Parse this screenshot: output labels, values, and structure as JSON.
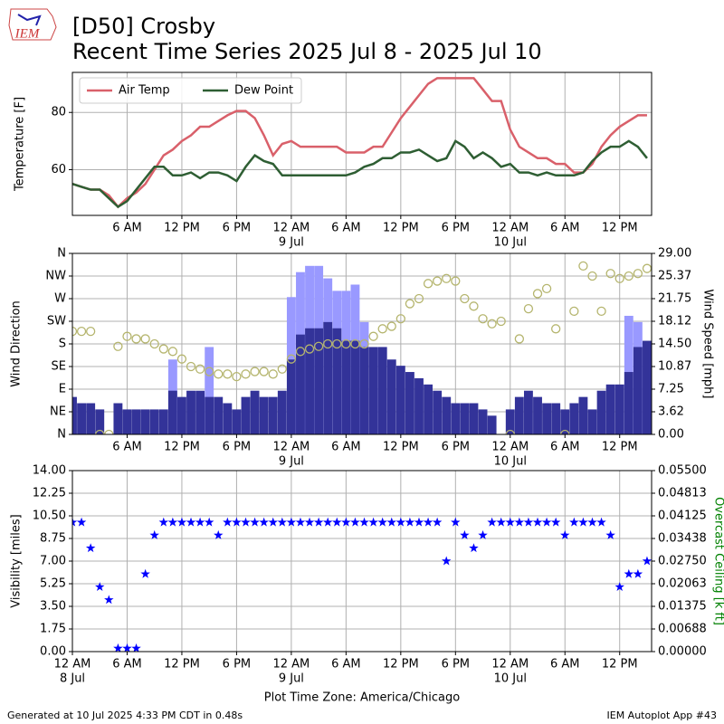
{
  "header": {
    "logo_text": "IEM",
    "title": "[D50] Crosby",
    "subtitle": "Recent Time Series 2025 Jul 8 - 2025 Jul 10"
  },
  "footer": {
    "left": "Generated at 10 Jul 2025 4:33 PM CDT in 0.48s",
    "right": "IEM Autoplot App #43"
  },
  "chart_data": [
    {
      "type": "line",
      "ylabel": "Temperature [F]",
      "grid": true,
      "legend": "upper left",
      "xlim": [
        0,
        63.5
      ],
      "ylim": [
        44,
        94
      ],
      "yticks": [
        60,
        80
      ],
      "xticks": [
        {
          "value": 6,
          "label": "6 AM"
        },
        {
          "value": 12,
          "label": "12 PM"
        },
        {
          "value": 18,
          "label": "6 PM"
        },
        {
          "value": 24,
          "label": "12 AM"
        },
        {
          "value": 30,
          "label": "6 AM"
        },
        {
          "value": 36,
          "label": "12 PM"
        },
        {
          "value": 42,
          "label": "6 PM"
        },
        {
          "value": 48,
          "label": "12 AM"
        },
        {
          "value": 54,
          "label": "6 AM"
        },
        {
          "value": 60,
          "label": "12 PM"
        }
      ],
      "xdate_labels": [
        {
          "value": 24,
          "label": "9 Jul"
        },
        {
          "value": 48,
          "label": "10 Jul"
        }
      ],
      "x": [
        0,
        1,
        2,
        3,
        4,
        5,
        6,
        7,
        8,
        9,
        10,
        11,
        12,
        13,
        14,
        15,
        16,
        17,
        18,
        19,
        20,
        21,
        22,
        23,
        24,
        25,
        26,
        27,
        28,
        29,
        30,
        31,
        32,
        33,
        34,
        35,
        36,
        37,
        38,
        39,
        40,
        41,
        42,
        43,
        44,
        45,
        46,
        47,
        48,
        49,
        50,
        51,
        52,
        53,
        54,
        55,
        56,
        57,
        58,
        59,
        60,
        61,
        62,
        63
      ],
      "series": [
        {
          "name": "Air Temp",
          "color": "#d9606a",
          "values": [
            55,
            54,
            53,
            53,
            51,
            47,
            50,
            52,
            55,
            60,
            65,
            67,
            70,
            72,
            75,
            75,
            77,
            79,
            80.5,
            80.5,
            78,
            72,
            65,
            69,
            70,
            68,
            68,
            68,
            68,
            68,
            66,
            66,
            66,
            68,
            68,
            73,
            78,
            82,
            86,
            90,
            92,
            92,
            92,
            92,
            92,
            88,
            84,
            84,
            74,
            68,
            66,
            64,
            64,
            62,
            62,
            59,
            59,
            62,
            68,
            72,
            75,
            77,
            79,
            79
          ]
        },
        {
          "name": "Dew Point",
          "color": "#2e5e33",
          "values": [
            55,
            54,
            53,
            53,
            50,
            47,
            49,
            53,
            57,
            61,
            61,
            58,
            58,
            59,
            57,
            59,
            59,
            58,
            56,
            61,
            65,
            63,
            62,
            58,
            58,
            58,
            58,
            58,
            58,
            58,
            58,
            59,
            61,
            62,
            64,
            64,
            66,
            66,
            67,
            65,
            63,
            64,
            70,
            68,
            64,
            66,
            64,
            61,
            62,
            59,
            59,
            58,
            59,
            58,
            58,
            58,
            59,
            63,
            66,
            68,
            68,
            70,
            68,
            64
          ]
        }
      ]
    },
    {
      "type": "bar",
      "ylabel": "Wind Direction",
      "y2label": "Wind Speed [mph]",
      "grid": true,
      "xlim": [
        0,
        63.5
      ],
      "ylim": [
        0,
        360
      ],
      "yticks": [
        {
          "value": 0,
          "label": "N"
        },
        {
          "value": 45,
          "label": "NE"
        },
        {
          "value": 90,
          "label": "E"
        },
        {
          "value": 135,
          "label": "SE"
        },
        {
          "value": 180,
          "label": "S"
        },
        {
          "value": 225,
          "label": "SW"
        },
        {
          "value": 270,
          "label": "W"
        },
        {
          "value": 315,
          "label": "NW"
        },
        {
          "value": 360,
          "label": "N"
        }
      ],
      "y2lim": [
        0,
        29
      ],
      "y2ticks": [
        {
          "value": 0,
          "label": "0.00"
        },
        {
          "value": 3.625,
          "label": "3.62"
        },
        {
          "value": 7.25,
          "label": "7.25"
        },
        {
          "value": 10.875,
          "label": "10.87"
        },
        {
          "value": 14.5,
          "label": "14.50"
        },
        {
          "value": 18.125,
          "label": "18.12"
        },
        {
          "value": 21.75,
          "label": "21.75"
        },
        {
          "value": 25.375,
          "label": "25.37"
        },
        {
          "value": 29,
          "label": "29.00"
        }
      ],
      "xticks": [
        {
          "value": 6,
          "label": "6 AM"
        },
        {
          "value": 12,
          "label": "12 PM"
        },
        {
          "value": 18,
          "label": "6 PM"
        },
        {
          "value": 24,
          "label": "12 AM"
        },
        {
          "value": 30,
          "label": "6 AM"
        },
        {
          "value": 36,
          "label": "12 PM"
        },
        {
          "value": 42,
          "label": "6 PM"
        },
        {
          "value": 48,
          "label": "12 AM"
        },
        {
          "value": 54,
          "label": "6 AM"
        },
        {
          "value": 60,
          "label": "12 PM"
        }
      ],
      "xdate_labels": [
        {
          "value": 24,
          "label": "9 Jul"
        },
        {
          "value": 48,
          "label": "10 Jul"
        }
      ],
      "x": [
        0,
        1,
        2,
        3,
        4,
        5,
        6,
        7,
        8,
        9,
        10,
        11,
        12,
        13,
        14,
        15,
        16,
        17,
        18,
        19,
        20,
        21,
        22,
        23,
        24,
        25,
        26,
        27,
        28,
        29,
        30,
        31,
        32,
        33,
        34,
        35,
        36,
        37,
        38,
        39,
        40,
        41,
        42,
        43,
        44,
        45,
        46,
        47,
        48,
        49,
        50,
        51,
        52,
        53,
        54,
        55,
        56,
        57,
        58,
        59,
        60,
        61,
        62,
        63
      ],
      "series": [
        {
          "color": "#9999ff",
          "axis": "y2",
          "marker": "bar",
          "values": [
            null,
            null,
            null,
            null,
            null,
            null,
            null,
            null,
            null,
            null,
            null,
            12,
            null,
            null,
            null,
            14,
            null,
            null,
            null,
            null,
            null,
            null,
            null,
            null,
            22,
            26,
            27,
            27,
            25,
            23,
            23,
            24,
            18,
            null,
            14,
            null,
            null,
            null,
            null,
            null,
            null,
            null,
            null,
            null,
            null,
            null,
            null,
            null,
            null,
            null,
            null,
            null,
            null,
            null,
            null,
            null,
            null,
            null,
            null,
            null,
            null,
            19,
            18,
            null
          ]
        },
        {
          "color": "#333399",
          "axis": "y2",
          "marker": "bar",
          "values": [
            6,
            5,
            5,
            4,
            0,
            5,
            4,
            4,
            4,
            4,
            4,
            7,
            6,
            7,
            7,
            6,
            6,
            5,
            4,
            6,
            7,
            6,
            6,
            7,
            12,
            16,
            17,
            17,
            18,
            17,
            15,
            15,
            14,
            14,
            14,
            12,
            11,
            10,
            9,
            8,
            7,
            6,
            5,
            5,
            5,
            4,
            3,
            0,
            4,
            6,
            7,
            6,
            5,
            5,
            4,
            5,
            6,
            4,
            7,
            8,
            8,
            10,
            14,
            15
          ]
        },
        {
          "color": "#b5b56e",
          "marker": "circle",
          "values": [
            205,
            205,
            205,
            0,
            0,
            175,
            195,
            190,
            190,
            180,
            170,
            165,
            150,
            135,
            130,
            125,
            120,
            120,
            115,
            120,
            125,
            125,
            120,
            130,
            150,
            165,
            170,
            175,
            180,
            180,
            180,
            180,
            180,
            195,
            210,
            215,
            230,
            260,
            270,
            300,
            305,
            310,
            305,
            270,
            255,
            230,
            220,
            225,
            0,
            190,
            250,
            280,
            290,
            210,
            0,
            245,
            335,
            315,
            245,
            320,
            310,
            315,
            320,
            330
          ]
        }
      ]
    },
    {
      "type": "scatter",
      "ylabel": "Visibility [miles]",
      "y2label": "Overcast Ceiling [k ft]",
      "xlabel": "Plot Time Zone: America/Chicago",
      "grid": true,
      "xlim": [
        0,
        63.5
      ],
      "ylim": [
        0,
        14
      ],
      "yticks": [
        {
          "value": 0,
          "label": "0.00"
        },
        {
          "value": 1.75,
          "label": "1.75"
        },
        {
          "value": 3.5,
          "label": "3.50"
        },
        {
          "value": 5.25,
          "label": "5.25"
        },
        {
          "value": 7,
          "label": "7.00"
        },
        {
          "value": 8.75,
          "label": "8.75"
        },
        {
          "value": 10.5,
          "label": "10.50"
        },
        {
          "value": 12.25,
          "label": "12.25"
        },
        {
          "value": 14,
          "label": "14.00"
        }
      ],
      "y2lim": [
        0,
        0.055
      ],
      "y2ticks": [
        {
          "value": 0,
          "label": "0.00000"
        },
        {
          "value": 0.006875,
          "label": "0.00688"
        },
        {
          "value": 0.01375,
          "label": "0.01375"
        },
        {
          "value": 0.020625,
          "label": "0.02063"
        },
        {
          "value": 0.0275,
          "label": "0.02750"
        },
        {
          "value": 0.034375,
          "label": "0.03438"
        },
        {
          "value": 0.04125,
          "label": "0.04125"
        },
        {
          "value": 0.048125,
          "label": "0.04813"
        },
        {
          "value": 0.055,
          "label": "0.05500"
        }
      ],
      "y2color": "#008000",
      "xticks": [
        {
          "value": 0,
          "label": "12 AM"
        },
        {
          "value": 6,
          "label": "6 AM"
        },
        {
          "value": 12,
          "label": "12 PM"
        },
        {
          "value": 18,
          "label": "6 PM"
        },
        {
          "value": 24,
          "label": "12 AM"
        },
        {
          "value": 30,
          "label": "6 AM"
        },
        {
          "value": 36,
          "label": "12 PM"
        },
        {
          "value": 42,
          "label": "6 PM"
        },
        {
          "value": 48,
          "label": "12 AM"
        },
        {
          "value": 54,
          "label": "6 AM"
        },
        {
          "value": 60,
          "label": "12 PM"
        }
      ],
      "xdate_labels": [
        {
          "value": 0,
          "label": "8 Jul"
        },
        {
          "value": 24,
          "label": "9 Jul"
        },
        {
          "value": 48,
          "label": "10 Jul"
        }
      ],
      "x": [
        0,
        1,
        2,
        3,
        4,
        5,
        6,
        7,
        8,
        9,
        10,
        11,
        12,
        13,
        14,
        15,
        16,
        17,
        18,
        19,
        20,
        21,
        22,
        23,
        24,
        25,
        26,
        27,
        28,
        29,
        30,
        31,
        32,
        33,
        34,
        35,
        36,
        37,
        38,
        39,
        40,
        41,
        42,
        43,
        44,
        45,
        46,
        47,
        48,
        49,
        50,
        51,
        52,
        53,
        54,
        55,
        56,
        57,
        58,
        59,
        60,
        61,
        62,
        63
      ],
      "series": [
        {
          "color": "#0000ff",
          "marker": "star",
          "values": [
            10,
            10,
            8,
            5,
            4,
            0.25,
            0.25,
            0.25,
            6,
            9,
            10,
            10,
            10,
            10,
            10,
            10,
            9,
            10,
            10,
            10,
            10,
            10,
            10,
            10,
            10,
            10,
            10,
            10,
            10,
            10,
            10,
            10,
            10,
            10,
            10,
            10,
            10,
            10,
            10,
            10,
            10,
            7,
            10,
            9,
            8,
            9,
            10,
            10,
            10,
            10,
            10,
            10,
            10,
            10,
            9,
            10,
            10,
            10,
            10,
            9,
            5,
            6,
            6,
            7
          ]
        }
      ]
    }
  ]
}
